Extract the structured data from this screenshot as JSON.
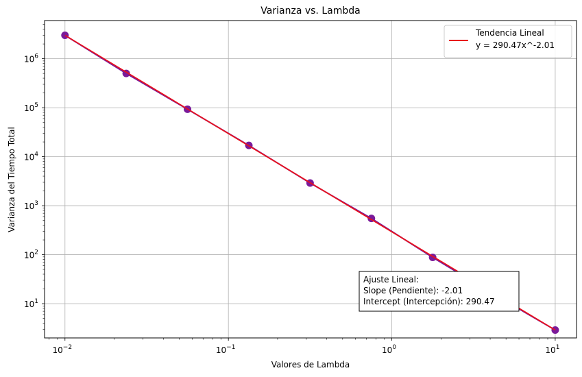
{
  "chart_data": {
    "type": "scatter",
    "title": "Varianza vs. Lambda",
    "xlabel": "Valores de Lambda",
    "ylabel": "Varianza del Tiempo Total",
    "xscale": "log",
    "yscale": "log",
    "xlim": [
      0.0075,
      13.5
    ],
    "ylim": [
      2.0,
      6000000
    ],
    "grid": true,
    "x_ticks": [
      {
        "value": 0.01,
        "base": "10",
        "exp": "−2"
      },
      {
        "value": 0.1,
        "base": "10",
        "exp": "−1"
      },
      {
        "value": 1,
        "base": "10",
        "exp": "0"
      },
      {
        "value": 10,
        "base": "10",
        "exp": "1"
      }
    ],
    "y_ticks": [
      {
        "value": 10,
        "base": "10",
        "exp": "1"
      },
      {
        "value": 100,
        "base": "10",
        "exp": "2"
      },
      {
        "value": 1000,
        "base": "10",
        "exp": "3"
      },
      {
        "value": 10000,
        "base": "10",
        "exp": "4"
      },
      {
        "value": 100000,
        "base": "10",
        "exp": "5"
      },
      {
        "value": 1000000,
        "base": "10",
        "exp": "6"
      }
    ],
    "points": {
      "x": [
        0.01,
        0.0237,
        0.0562,
        0.1334,
        0.3162,
        0.7499,
        1.7783,
        4.217,
        10.0
      ],
      "y": [
        3000000,
        500000,
        93000,
        17000,
        2900,
        550,
        88,
        15.5,
        2.9
      ],
      "color": "#7a1a9a"
    },
    "fit": {
      "x": [
        0.01,
        10.0
      ],
      "y": [
        3000000,
        2.9
      ],
      "color": "#e8111c"
    },
    "legend": {
      "position": "top-right",
      "line1": "Tendencia Lineal",
      "line2": "y = 290.47x^-2.01"
    },
    "annotation": {
      "line1": "Ajuste Lineal:",
      "line2": "Slope (Pendiente): -2.01",
      "line3": "Intercept (Intercepción): 290.47"
    }
  }
}
